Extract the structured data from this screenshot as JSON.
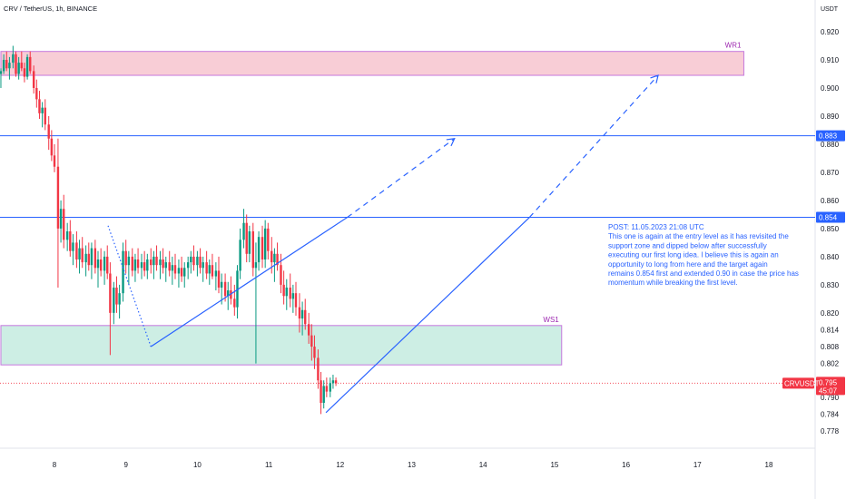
{
  "chart_data": {
    "type": "candlestick",
    "title": "CRV / TetherUS, 1h, BINANCE",
    "y_unit": "USDT",
    "x_ticks": [
      "8",
      "9",
      "10",
      "11",
      "12",
      "13",
      "14",
      "15",
      "16",
      "17",
      "18"
    ],
    "y_ticks": [
      "0.920",
      "0.910",
      "0.900",
      "0.890",
      "0.880",
      "0.870",
      "0.860",
      "0.850",
      "0.840",
      "0.830",
      "0.820",
      "0.814",
      "0.808",
      "0.802",
      "0.790",
      "0.784",
      "0.778"
    ],
    "ylim": [
      0.773,
      0.925
    ],
    "xlim": [
      7.25,
      18.85
    ],
    "zones": [
      {
        "label": "WR1",
        "low": 0.9045,
        "high": 0.913,
        "x_start": 7.25,
        "x_end": 17.65,
        "fill": "#f8cdd6",
        "stroke": "#c678dd",
        "label_color": "#9c27b0"
      },
      {
        "label": "WS1",
        "low": 0.8015,
        "high": 0.8155,
        "x_start": 7.25,
        "x_end": 15.1,
        "fill": "#cdeee4",
        "stroke": "#c678dd",
        "label_color": "#9c27b0"
      }
    ],
    "levels": [
      {
        "label": "0.883",
        "value": 0.883,
        "color": "#2962ff"
      },
      {
        "label": "0.854",
        "value": 0.854,
        "color": "#2962ff"
      }
    ],
    "current_price": {
      "symbol": "CRVUSDT",
      "value": 0.795,
      "label": "0.795",
      "countdown": "45:07",
      "color": "#f23645"
    },
    "annotation": {
      "lines": [
        "POST: 11.05.2023 21:08 UTC",
        "This one is again at the entry level as it has revisited the",
        "support zone and dipped below after successfully",
        "executing our first long idea. I believe this is again an",
        "opportunity to long from here and the target again",
        "remains 0.854 first and extended 0.90 in case the price has",
        "momentum while breaking the first level."
      ],
      "color": "#2962ff"
    },
    "drawings": [
      {
        "kind": "dotted",
        "points": [
          [
            8.75,
            0.851
          ],
          [
            9.35,
            0.808
          ]
        ],
        "color": "#2962ff"
      },
      {
        "kind": "solid",
        "points": [
          [
            9.35,
            0.808
          ],
          [
            12.1,
            0.854
          ]
        ],
        "color": "#2962ff"
      },
      {
        "kind": "dashed-arrow",
        "points": [
          [
            12.1,
            0.854
          ],
          [
            13.6,
            0.882
          ]
        ],
        "color": "#2962ff"
      },
      {
        "kind": "solid",
        "points": [
          [
            11.8,
            0.7845
          ],
          [
            14.65,
            0.854
          ]
        ],
        "color": "#2962ff"
      },
      {
        "kind": "dashed-arrow",
        "points": [
          [
            14.65,
            0.854
          ],
          [
            16.45,
            0.9045
          ]
        ],
        "color": "#2962ff"
      }
    ],
    "candles": [
      [
        7.25,
        0.905,
        0.907,
        0.9,
        0.906
      ],
      [
        7.29,
        0.906,
        0.912,
        0.905,
        0.91
      ],
      [
        7.33,
        0.91,
        0.913,
        0.906,
        0.907
      ],
      [
        7.37,
        0.907,
        0.911,
        0.903,
        0.909
      ],
      [
        7.42,
        0.909,
        0.915,
        0.907,
        0.912
      ],
      [
        7.46,
        0.912,
        0.913,
        0.904,
        0.905
      ],
      [
        7.5,
        0.905,
        0.911,
        0.903,
        0.909
      ],
      [
        7.54,
        0.909,
        0.913,
        0.906,
        0.907
      ],
      [
        7.58,
        0.907,
        0.909,
        0.902,
        0.904
      ],
      [
        7.62,
        0.904,
        0.912,
        0.903,
        0.911
      ],
      [
        7.66,
        0.911,
        0.913,
        0.905,
        0.906
      ],
      [
        7.71,
        0.906,
        0.908,
        0.898,
        0.9
      ],
      [
        7.75,
        0.9,
        0.903,
        0.893,
        0.896
      ],
      [
        7.79,
        0.896,
        0.899,
        0.889,
        0.891
      ],
      [
        7.83,
        0.891,
        0.895,
        0.886,
        0.893
      ],
      [
        7.87,
        0.893,
        0.896,
        0.885,
        0.887
      ],
      [
        7.92,
        0.887,
        0.89,
        0.878,
        0.882
      ],
      [
        7.96,
        0.882,
        0.885,
        0.874,
        0.876
      ],
      [
        8.0,
        0.876,
        0.88,
        0.87,
        0.872
      ],
      [
        8.05,
        0.872,
        0.882,
        0.829,
        0.85
      ],
      [
        8.09,
        0.85,
        0.86,
        0.845,
        0.857
      ],
      [
        8.13,
        0.857,
        0.862,
        0.843,
        0.846
      ],
      [
        8.18,
        0.846,
        0.852,
        0.842,
        0.849
      ],
      [
        8.22,
        0.849,
        0.853,
        0.84,
        0.842
      ],
      [
        8.26,
        0.842,
        0.848,
        0.837,
        0.845
      ],
      [
        8.31,
        0.845,
        0.849,
        0.836,
        0.839
      ],
      [
        8.35,
        0.839,
        0.846,
        0.834,
        0.843
      ],
      [
        8.39,
        0.843,
        0.847,
        0.836,
        0.838
      ],
      [
        8.44,
        0.838,
        0.844,
        0.833,
        0.841
      ],
      [
        8.48,
        0.841,
        0.845,
        0.835,
        0.837
      ],
      [
        8.52,
        0.837,
        0.845,
        0.832,
        0.843
      ],
      [
        8.57,
        0.843,
        0.846,
        0.834,
        0.836
      ],
      [
        8.61,
        0.836,
        0.842,
        0.829,
        0.839
      ],
      [
        8.65,
        0.839,
        0.843,
        0.833,
        0.835
      ],
      [
        8.7,
        0.835,
        0.842,
        0.83,
        0.84
      ],
      [
        8.74,
        0.84,
        0.844,
        0.832,
        0.834
      ],
      [
        8.78,
        0.834,
        0.838,
        0.805,
        0.82
      ],
      [
        8.83,
        0.82,
        0.831,
        0.816,
        0.829
      ],
      [
        8.87,
        0.829,
        0.833,
        0.82,
        0.823
      ],
      [
        8.91,
        0.823,
        0.83,
        0.818,
        0.827
      ],
      [
        8.96,
        0.827,
        0.845,
        0.824,
        0.842
      ],
      [
        9.0,
        0.842,
        0.846,
        0.834,
        0.837
      ],
      [
        9.04,
        0.837,
        0.842,
        0.83,
        0.84
      ],
      [
        9.09,
        0.84,
        0.843,
        0.833,
        0.835
      ],
      [
        9.13,
        0.835,
        0.841,
        0.831,
        0.839
      ],
      [
        9.17,
        0.839,
        0.843,
        0.834,
        0.836
      ],
      [
        9.22,
        0.836,
        0.841,
        0.832,
        0.838
      ],
      [
        9.26,
        0.838,
        0.842,
        0.833,
        0.835
      ],
      [
        9.3,
        0.835,
        0.841,
        0.832,
        0.839
      ],
      [
        9.35,
        0.839,
        0.843,
        0.834,
        0.837
      ],
      [
        9.39,
        0.837,
        0.842,
        0.832,
        0.84
      ],
      [
        9.43,
        0.84,
        0.844,
        0.835,
        0.837
      ],
      [
        9.48,
        0.837,
        0.842,
        0.832,
        0.839
      ],
      [
        9.52,
        0.839,
        0.843,
        0.834,
        0.836
      ],
      [
        9.56,
        0.836,
        0.84,
        0.831,
        0.838
      ],
      [
        9.61,
        0.838,
        0.842,
        0.833,
        0.835
      ],
      [
        9.65,
        0.835,
        0.84,
        0.83,
        0.837
      ],
      [
        9.69,
        0.837,
        0.841,
        0.832,
        0.834
      ],
      [
        9.74,
        0.834,
        0.839,
        0.829,
        0.836
      ],
      [
        9.78,
        0.836,
        0.84,
        0.831,
        0.833
      ],
      [
        9.82,
        0.833,
        0.838,
        0.829,
        0.836
      ],
      [
        9.87,
        0.836,
        0.84,
        0.832,
        0.838
      ],
      [
        9.91,
        0.838,
        0.842,
        0.834,
        0.84
      ],
      [
        9.95,
        0.84,
        0.844,
        0.835,
        0.837
      ],
      [
        10.0,
        0.837,
        0.842,
        0.833,
        0.84
      ],
      [
        10.04,
        0.84,
        0.843,
        0.834,
        0.836
      ],
      [
        10.08,
        0.836,
        0.84,
        0.831,
        0.838
      ],
      [
        10.13,
        0.838,
        0.842,
        0.832,
        0.834
      ],
      [
        10.17,
        0.834,
        0.839,
        0.83,
        0.837
      ],
      [
        10.21,
        0.837,
        0.841,
        0.832,
        0.833
      ],
      [
        10.26,
        0.833,
        0.838,
        0.828,
        0.835
      ],
      [
        10.3,
        0.835,
        0.84,
        0.827,
        0.829
      ],
      [
        10.34,
        0.829,
        0.834,
        0.823,
        0.831
      ],
      [
        10.39,
        0.831,
        0.834,
        0.824,
        0.826
      ],
      [
        10.43,
        0.826,
        0.831,
        0.821,
        0.828
      ],
      [
        10.47,
        0.828,
        0.833,
        0.823,
        0.825
      ],
      [
        10.52,
        0.825,
        0.83,
        0.819,
        0.822
      ],
      [
        10.56,
        0.822,
        0.837,
        0.818,
        0.835
      ],
      [
        10.6,
        0.835,
        0.85,
        0.832,
        0.846
      ],
      [
        10.65,
        0.846,
        0.857,
        0.843,
        0.852
      ],
      [
        10.69,
        0.852,
        0.855,
        0.838,
        0.841
      ],
      [
        10.73,
        0.841,
        0.851,
        0.838,
        0.849
      ],
      [
        10.78,
        0.849,
        0.852,
        0.833,
        0.836
      ],
      [
        10.82,
        0.836,
        0.845,
        0.802,
        0.838
      ],
      [
        10.86,
        0.838,
        0.849,
        0.835,
        0.847
      ],
      [
        10.91,
        0.847,
        0.851,
        0.836,
        0.839
      ],
      [
        10.95,
        0.839,
        0.853,
        0.836,
        0.85
      ],
      [
        10.99,
        0.85,
        0.852,
        0.839,
        0.842
      ],
      [
        11.04,
        0.842,
        0.847,
        0.834,
        0.838
      ],
      [
        11.08,
        0.838,
        0.843,
        0.831,
        0.841
      ],
      [
        11.12,
        0.841,
        0.845,
        0.835,
        0.837
      ],
      [
        11.17,
        0.837,
        0.841,
        0.827,
        0.83
      ],
      [
        11.21,
        0.83,
        0.835,
        0.823,
        0.826
      ],
      [
        11.25,
        0.826,
        0.832,
        0.821,
        0.829
      ],
      [
        11.3,
        0.829,
        0.834,
        0.822,
        0.825
      ],
      [
        11.34,
        0.825,
        0.83,
        0.82,
        0.827
      ],
      [
        11.38,
        0.827,
        0.831,
        0.819,
        0.822
      ],
      [
        11.43,
        0.822,
        0.827,
        0.813,
        0.818
      ],
      [
        11.47,
        0.818,
        0.824,
        0.812,
        0.821
      ],
      [
        11.51,
        0.821,
        0.825,
        0.814,
        0.816
      ],
      [
        11.56,
        0.816,
        0.82,
        0.809,
        0.812
      ],
      [
        11.6,
        0.812,
        0.816,
        0.803,
        0.808
      ],
      [
        11.64,
        0.808,
        0.812,
        0.8,
        0.804
      ],
      [
        11.69,
        0.804,
        0.807,
        0.793,
        0.796
      ],
      [
        11.73,
        0.796,
        0.799,
        0.784,
        0.788
      ],
      [
        11.77,
        0.788,
        0.796,
        0.786,
        0.794
      ],
      [
        11.81,
        0.794,
        0.797,
        0.79,
        0.792
      ],
      [
        11.86,
        0.792,
        0.797,
        0.79,
        0.795
      ],
      [
        11.9,
        0.795,
        0.798,
        0.793,
        0.796
      ],
      [
        11.94,
        0.796,
        0.797,
        0.794,
        0.795
      ]
    ]
  }
}
